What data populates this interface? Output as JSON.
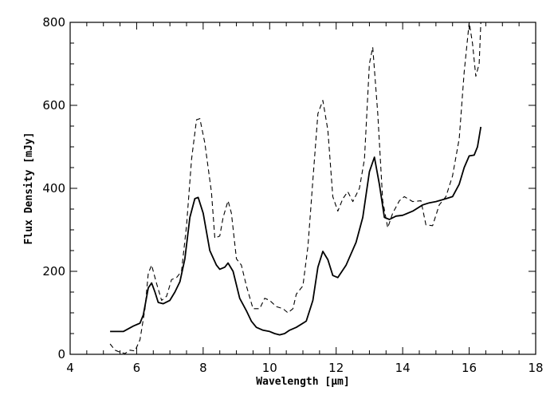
{
  "chart_data": {
    "type": "line",
    "title": "",
    "xlabel": "Wavelength [μm]",
    "ylabel": "Flux Density [mJy]",
    "xlim": [
      4,
      18
    ],
    "ylim": [
      0,
      800
    ],
    "x_ticks": [
      4,
      6,
      8,
      10,
      12,
      14,
      16,
      18
    ],
    "y_ticks": [
      0,
      200,
      400,
      600,
      800
    ],
    "grid": false,
    "legend": "none",
    "series": [
      {
        "style": "solid",
        "color": "#000000",
        "points": [
          [
            5.2,
            55
          ],
          [
            5.6,
            55
          ],
          [
            5.9,
            68
          ],
          [
            6.1,
            75
          ],
          [
            6.2,
            95
          ],
          [
            6.35,
            160
          ],
          [
            6.45,
            172
          ],
          [
            6.55,
            150
          ],
          [
            6.65,
            125
          ],
          [
            6.8,
            122
          ],
          [
            7.0,
            130
          ],
          [
            7.15,
            150
          ],
          [
            7.3,
            175
          ],
          [
            7.45,
            230
          ],
          [
            7.6,
            330
          ],
          [
            7.75,
            375
          ],
          [
            7.85,
            378
          ],
          [
            8.0,
            340
          ],
          [
            8.2,
            250
          ],
          [
            8.4,
            215
          ],
          [
            8.5,
            205
          ],
          [
            8.65,
            210
          ],
          [
            8.75,
            220
          ],
          [
            8.9,
            200
          ],
          [
            9.1,
            135
          ],
          [
            9.3,
            105
          ],
          [
            9.45,
            80
          ],
          [
            9.6,
            65
          ],
          [
            9.8,
            58
          ],
          [
            10.0,
            55
          ],
          [
            10.15,
            50
          ],
          [
            10.3,
            47
          ],
          [
            10.45,
            50
          ],
          [
            10.6,
            58
          ],
          [
            10.8,
            65
          ],
          [
            11.1,
            80
          ],
          [
            11.3,
            130
          ],
          [
            11.45,
            210
          ],
          [
            11.6,
            248
          ],
          [
            11.75,
            228
          ],
          [
            11.9,
            190
          ],
          [
            12.05,
            185
          ],
          [
            12.3,
            215
          ],
          [
            12.6,
            270
          ],
          [
            12.8,
            330
          ],
          [
            13.0,
            440
          ],
          [
            13.15,
            475
          ],
          [
            13.3,
            410
          ],
          [
            13.45,
            330
          ],
          [
            13.6,
            325
          ],
          [
            13.8,
            333
          ],
          [
            14.0,
            335
          ],
          [
            14.3,
            345
          ],
          [
            14.6,
            360
          ],
          [
            14.8,
            365
          ],
          [
            15.0,
            368
          ],
          [
            15.3,
            375
          ],
          [
            15.5,
            380
          ],
          [
            15.7,
            410
          ],
          [
            15.85,
            450
          ],
          [
            16.0,
            478
          ],
          [
            16.15,
            480
          ],
          [
            16.25,
            500
          ],
          [
            16.35,
            548
          ]
        ]
      },
      {
        "style": "dashed",
        "color": "#000000",
        "points": [
          [
            5.2,
            25
          ],
          [
            5.35,
            10
          ],
          [
            5.5,
            5
          ],
          [
            5.65,
            2
          ],
          [
            5.8,
            10
          ],
          [
            5.95,
            8
          ],
          [
            6.1,
            35
          ],
          [
            6.25,
            110
          ],
          [
            6.35,
            195
          ],
          [
            6.45,
            215
          ],
          [
            6.6,
            170
          ],
          [
            6.75,
            130
          ],
          [
            6.9,
            140
          ],
          [
            7.05,
            180
          ],
          [
            7.2,
            185
          ],
          [
            7.35,
            200
          ],
          [
            7.5,
            310
          ],
          [
            7.65,
            470
          ],
          [
            7.8,
            565
          ],
          [
            7.9,
            568
          ],
          [
            8.05,
            510
          ],
          [
            8.25,
            390
          ],
          [
            8.35,
            280
          ],
          [
            8.5,
            285
          ],
          [
            8.6,
            330
          ],
          [
            8.75,
            370
          ],
          [
            8.85,
            340
          ],
          [
            9.0,
            230
          ],
          [
            9.15,
            215
          ],
          [
            9.3,
            165
          ],
          [
            9.5,
            110
          ],
          [
            9.7,
            110
          ],
          [
            9.85,
            135
          ],
          [
            10.0,
            130
          ],
          [
            10.2,
            115
          ],
          [
            10.4,
            110
          ],
          [
            10.55,
            100
          ],
          [
            10.7,
            110
          ],
          [
            10.8,
            145
          ],
          [
            11.0,
            165
          ],
          [
            11.15,
            260
          ],
          [
            11.3,
            420
          ],
          [
            11.45,
            580
          ],
          [
            11.6,
            612
          ],
          [
            11.75,
            540
          ],
          [
            11.9,
            380
          ],
          [
            12.05,
            345
          ],
          [
            12.2,
            375
          ],
          [
            12.35,
            392
          ],
          [
            12.5,
            368
          ],
          [
            12.7,
            400
          ],
          [
            12.85,
            470
          ],
          [
            13.0,
            700
          ],
          [
            13.1,
            740
          ],
          [
            13.25,
            580
          ],
          [
            13.4,
            370
          ],
          [
            13.55,
            305
          ],
          [
            13.7,
            340
          ],
          [
            13.9,
            370
          ],
          [
            14.05,
            380
          ],
          [
            14.3,
            368
          ],
          [
            14.55,
            370
          ],
          [
            14.7,
            312
          ],
          [
            14.9,
            310
          ],
          [
            15.1,
            360
          ],
          [
            15.3,
            380
          ],
          [
            15.5,
            430
          ],
          [
            15.7,
            520
          ],
          [
            15.85,
            680
          ],
          [
            16.0,
            800
          ],
          [
            16.1,
            750
          ],
          [
            16.2,
            670
          ],
          [
            16.3,
            700
          ],
          [
            16.35,
            800
          ]
        ]
      }
    ]
  }
}
